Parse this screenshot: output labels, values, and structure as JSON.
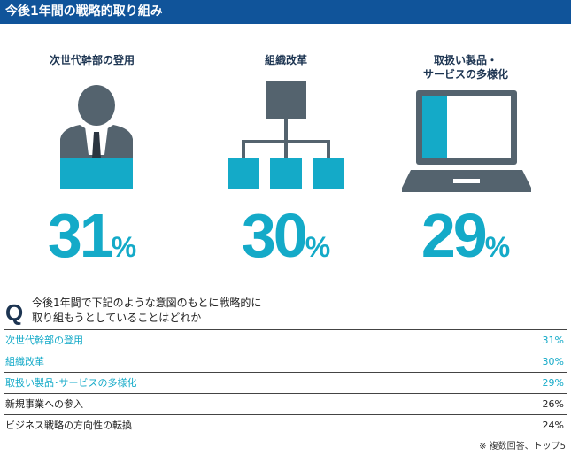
{
  "header": {
    "title": "今後1年間の戦略的取り組み"
  },
  "highlights": [
    {
      "label_lines": [
        "次世代幹部の登用"
      ],
      "value": "31",
      "unit": "%",
      "icon": "businessperson-icon"
    },
    {
      "label_lines": [
        "組織改革"
      ],
      "value": "30",
      "unit": "%",
      "icon": "org-chart-icon"
    },
    {
      "label_lines": [
        "取扱い製品・",
        "サービスの多様化"
      ],
      "value": "29",
      "unit": "%",
      "icon": "laptop-icon"
    }
  ],
  "question": {
    "mark": "Q",
    "lines": [
      "今後1年間で下記のような意図のもとに戦略的に",
      "取り組もうとしていることはどれか"
    ]
  },
  "chart_data": {
    "type": "table",
    "categories": [
      "次世代幹部の登用",
      "組織改革",
      "取扱い製品･サービスの多様化",
      "新規事業への参入",
      "ビジネス戦略の方向性の転換"
    ],
    "values": [
      31,
      30,
      29,
      26,
      24
    ],
    "value_labels": [
      "31%",
      "30%",
      "29%",
      "26%",
      "24%"
    ],
    "highlighted": [
      true,
      true,
      true,
      false,
      false
    ]
  },
  "note": "※ 複数回答、トップ5",
  "colors": {
    "header_bg": "#10549a",
    "accent": "#14aac8",
    "icon_gray": "#54636e"
  }
}
